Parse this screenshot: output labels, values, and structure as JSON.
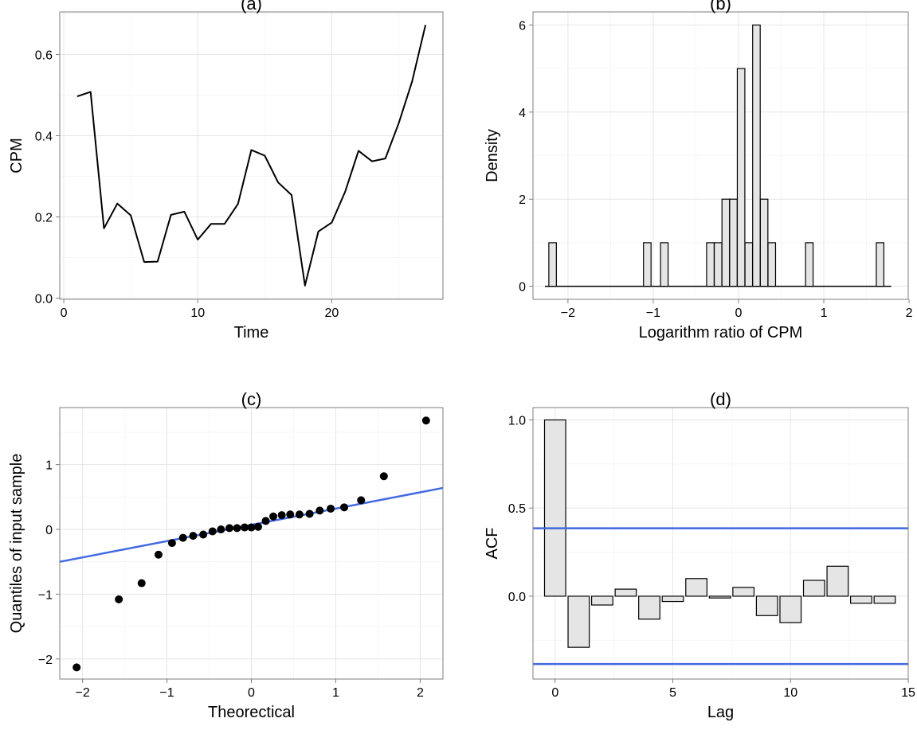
{
  "chart_data": [
    {
      "id": "a",
      "type": "line",
      "title": "(a)",
      "xlabel": "Time",
      "ylabel": "CPM",
      "xlim": [
        -0.3,
        28.3
      ],
      "ylim": [
        -0.003,
        0.705
      ],
      "xticks": [
        0,
        10,
        20
      ],
      "yticks": [
        0.0,
        0.2,
        0.4,
        0.6
      ],
      "ytick_labels": [
        "0.0",
        "0.2",
        "0.4",
        "0.6"
      ],
      "grid": true,
      "line_color": "#000000",
      "x": [
        1,
        2,
        3,
        4,
        5,
        6,
        7,
        8,
        9,
        10,
        11,
        12,
        13,
        14,
        15,
        16,
        17,
        18,
        19,
        20,
        21,
        22,
        23,
        24,
        25,
        26,
        27
      ],
      "y": [
        0.497,
        0.508,
        0.172,
        0.233,
        0.204,
        0.089,
        0.09,
        0.205,
        0.213,
        0.144,
        0.183,
        0.183,
        0.232,
        0.365,
        0.351,
        0.285,
        0.254,
        0.031,
        0.164,
        0.186,
        0.262,
        0.363,
        0.337,
        0.344,
        0.431,
        0.534,
        0.673
      ]
    },
    {
      "id": "b",
      "type": "bar",
      "title": "(b)",
      "xlabel": "Logarithm ratio of CPM",
      "ylabel": "Density",
      "xlim": [
        -2.41,
        1.99
      ],
      "ylim": [
        -0.3,
        6.3
      ],
      "xticks": [
        -2,
        -1,
        0,
        1,
        2
      ],
      "yticks": [
        0,
        2,
        4,
        6
      ],
      "grid": true,
      "bar_fill": "#e5e5e5",
      "bar_stroke": "#000000",
      "baseline_range": [
        -2.27,
        1.79
      ],
      "bin_width": 0.0885,
      "bins": [
        {
          "center": -2.18,
          "density": 1
        },
        {
          "center": -1.07,
          "density": 1
        },
        {
          "center": -0.87,
          "density": 1
        },
        {
          "center": -0.33,
          "density": 1
        },
        {
          "center": -0.24,
          "density": 1
        },
        {
          "center": -0.15,
          "density": 2
        },
        {
          "center": -0.06,
          "density": 2
        },
        {
          "center": 0.03,
          "density": 5
        },
        {
          "center": 0.12,
          "density": 1
        },
        {
          "center": 0.21,
          "density": 6
        },
        {
          "center": 0.3,
          "density": 2
        },
        {
          "center": 0.39,
          "density": 1
        },
        {
          "center": 0.83,
          "density": 1
        },
        {
          "center": 1.66,
          "density": 1
        }
      ]
    },
    {
      "id": "c",
      "type": "scatter",
      "title": "(c)",
      "xlabel": "Theorectical",
      "ylabel": "Quantiles of input sample",
      "xlim": [
        -2.27,
        2.27
      ],
      "ylim": [
        -2.31,
        1.88
      ],
      "xticks": [
        -2,
        -1,
        0,
        1,
        2
      ],
      "yticks": [
        -2,
        -1,
        0,
        1
      ],
      "grid": true,
      "point_color": "#000000",
      "line_color": "#4169e1",
      "reference_line": {
        "x": [
          -2.27,
          2.27
        ],
        "y": [
          -0.5,
          0.64
        ]
      },
      "x": [
        -2.07,
        -1.57,
        -1.3,
        -1.1,
        -0.94,
        -0.81,
        -0.69,
        -0.57,
        -0.46,
        -0.36,
        -0.26,
        -0.17,
        -0.08,
        0.0,
        0.08,
        0.17,
        0.26,
        0.36,
        0.46,
        0.57,
        0.69,
        0.81,
        0.94,
        1.1,
        1.3,
        1.57,
        2.07
      ],
      "y": [
        -2.13,
        -1.08,
        -0.83,
        -0.39,
        -0.21,
        -0.13,
        -0.1,
        -0.08,
        -0.03,
        0.0,
        0.02,
        0.02,
        0.03,
        0.03,
        0.04,
        0.13,
        0.2,
        0.22,
        0.23,
        0.23,
        0.24,
        0.29,
        0.32,
        0.34,
        0.45,
        0.82,
        1.68
      ]
    },
    {
      "id": "d",
      "type": "bar",
      "title": "(d)",
      "xlabel": "Lag",
      "ylabel": "ACF",
      "xlim": [
        -0.94,
        15.0
      ],
      "ylim": [
        -0.47,
        1.07
      ],
      "xticks": [
        0,
        5,
        10,
        15
      ],
      "yticks": [
        0.0,
        0.5,
        1.0
      ],
      "ytick_labels": [
        "0.0",
        "0.5",
        "1.0"
      ],
      "grid": true,
      "bar_fill": "#e5e5e5",
      "bar_stroke": "#000000",
      "bar_width": 0.9,
      "confidence_color": "#4169e1",
      "confidence_bounds": [
        0.385,
        -0.385
      ],
      "categories": [
        0,
        1,
        2,
        3,
        4,
        5,
        6,
        7,
        8,
        9,
        10,
        11,
        12,
        13,
        14
      ],
      "values": [
        1.0,
        -0.29,
        -0.05,
        0.04,
        -0.13,
        -0.03,
        0.1,
        -0.01,
        0.05,
        -0.11,
        -0.15,
        0.09,
        0.17,
        -0.04,
        -0.04
      ]
    }
  ]
}
